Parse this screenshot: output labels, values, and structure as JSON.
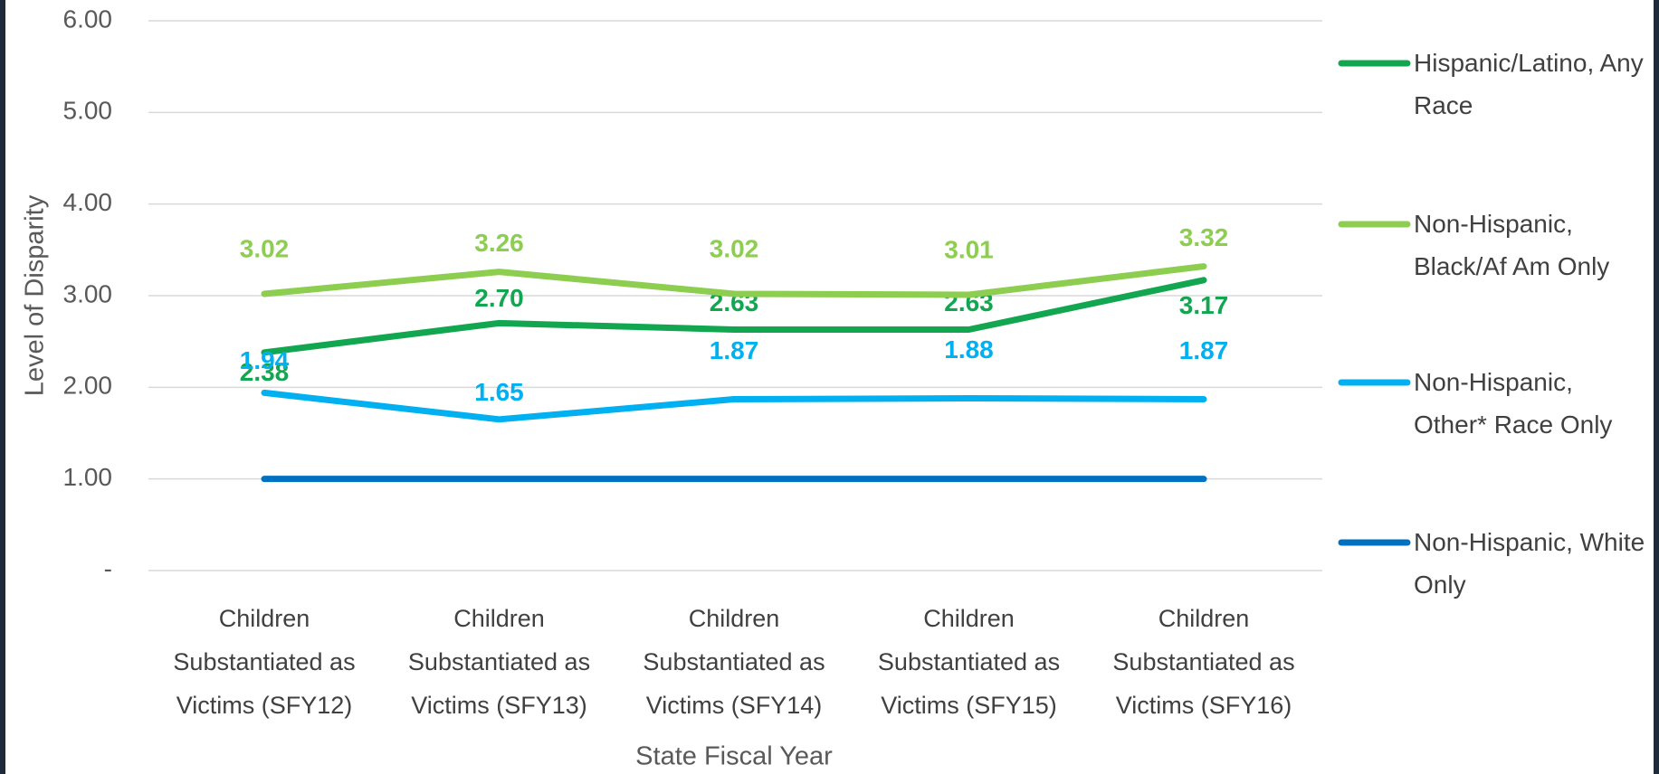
{
  "chart_data": {
    "type": "line",
    "categories": [
      "Children Substantiated as Victims (SFY12)",
      "Children Substantiated as Victims (SFY13)",
      "Children Substantiated as Victims (SFY14)",
      "Children Substantiated as Victims (SFY15)",
      "Children Substantiated as Victims (SFY16)"
    ],
    "x_label": "State Fiscal Year",
    "y_label": "Level of Disparity",
    "ylim": [
      0,
      6
    ],
    "yticks": [
      {
        "value": 0,
        "label": "-"
      },
      {
        "value": 1,
        "label": "1.00"
      },
      {
        "value": 2,
        "label": "2.00"
      },
      {
        "value": 3,
        "label": "3.00"
      },
      {
        "value": 4,
        "label": "4.00"
      },
      {
        "value": 5,
        "label": "5.00"
      },
      {
        "value": 6,
        "label": "6.00"
      }
    ],
    "grid": true,
    "legend": "right",
    "series": [
      {
        "name": "Hispanic/Latino, Any Race",
        "color": "#12a650",
        "values": [
          2.38,
          2.7,
          2.63,
          2.63,
          3.17
        ],
        "value_labels": [
          "2.38",
          "2.70",
          "2.63",
          "2.63",
          "3.17"
        ]
      },
      {
        "name": "Non-Hispanic, Black/Af Am Only",
        "color": "#8dcd4f",
        "values": [
          3.02,
          3.26,
          3.02,
          3.01,
          3.32
        ],
        "value_labels": [
          "3.02",
          "3.26",
          "3.02",
          "3.01",
          "3.32"
        ]
      },
      {
        "name": "Non-Hispanic, Other* Race Only",
        "color": "#00b0f0",
        "values": [
          1.94,
          1.65,
          1.87,
          1.88,
          1.87
        ],
        "value_labels": [
          "1.94",
          "1.65",
          "1.87",
          "1.88",
          "1.87"
        ]
      },
      {
        "name": "Non-Hispanic, White Only",
        "color": "#0070c0",
        "values": [
          1,
          1,
          1,
          1,
          1
        ]
      }
    ]
  }
}
